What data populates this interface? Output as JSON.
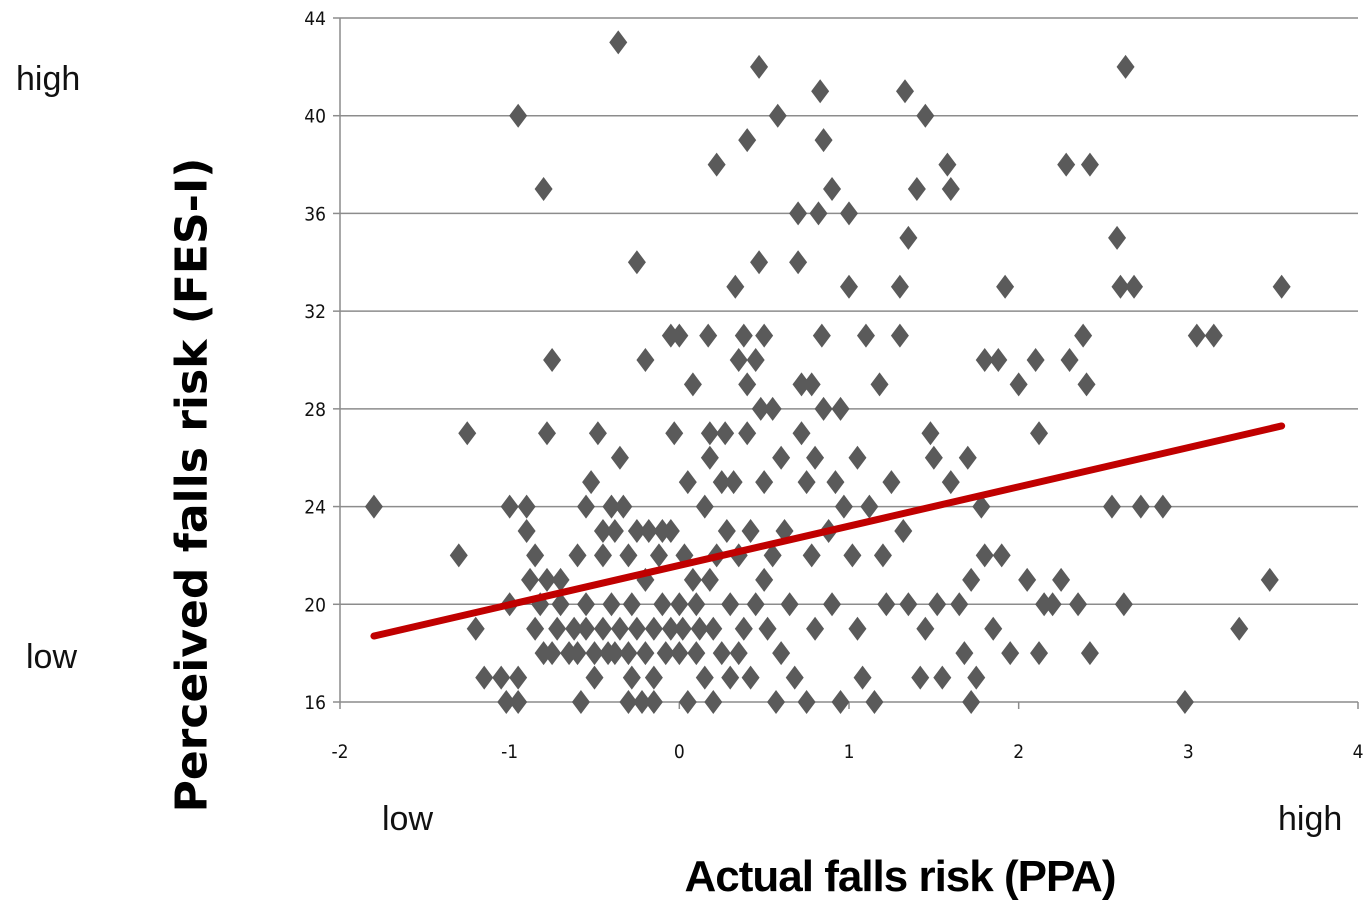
{
  "labels": {
    "y_high": "high",
    "y_low": "low",
    "x_low": "low",
    "x_high": "high"
  },
  "chart_data": {
    "type": "scatter",
    "title": "",
    "xlabel": "Actual  falls risk (PPA)",
    "ylabel": "Perceived falls risk (FES-I)",
    "xlim": [
      -2,
      4
    ],
    "ylim": [
      16,
      44
    ],
    "xticks": [
      -2,
      -1,
      0,
      1,
      2,
      3,
      4
    ],
    "yticks": [
      16,
      20,
      24,
      28,
      32,
      36,
      40,
      44
    ],
    "grid": "horizontal",
    "marker": "diamond",
    "colors": {
      "points": "#5a5a5a",
      "trend": "#c00000",
      "grid": "#8c8c8c"
    },
    "trendline": {
      "x": [
        -1.8,
        3.55
      ],
      "y": [
        18.7,
        27.3
      ]
    },
    "points": [
      [
        -1.8,
        24
      ],
      [
        -1.3,
        22
      ],
      [
        -1.25,
        27
      ],
      [
        -1.2,
        19
      ],
      [
        -1.15,
        17
      ],
      [
        -1.05,
        17
      ],
      [
        -1.02,
        16
      ],
      [
        -1.0,
        24
      ],
      [
        -1.0,
        20
      ],
      [
        -0.95,
        17
      ],
      [
        -0.95,
        16
      ],
      [
        -0.95,
        40
      ],
      [
        -0.9,
        23
      ],
      [
        -0.9,
        24
      ],
      [
        -0.88,
        21
      ],
      [
        -0.85,
        22
      ],
      [
        -0.85,
        19
      ],
      [
        -0.82,
        20
      ],
      [
        -0.8,
        37
      ],
      [
        -0.8,
        18
      ],
      [
        -0.78,
        27
      ],
      [
        -0.78,
        21
      ],
      [
        -0.75,
        18
      ],
      [
        -0.75,
        30
      ],
      [
        -0.72,
        19
      ],
      [
        -0.7,
        20
      ],
      [
        -0.7,
        21
      ],
      [
        -0.65,
        18
      ],
      [
        -0.62,
        19
      ],
      [
        -0.6,
        22
      ],
      [
        -0.6,
        18
      ],
      [
        -0.58,
        16
      ],
      [
        -0.55,
        24
      ],
      [
        -0.55,
        19
      ],
      [
        -0.55,
        20
      ],
      [
        -0.52,
        25
      ],
      [
        -0.5,
        17
      ],
      [
        -0.5,
        18
      ],
      [
        -0.48,
        27
      ],
      [
        -0.45,
        22
      ],
      [
        -0.45,
        23
      ],
      [
        -0.45,
        19
      ],
      [
        -0.42,
        18
      ],
      [
        -0.4,
        24
      ],
      [
        -0.4,
        20
      ],
      [
        -0.38,
        23
      ],
      [
        -0.38,
        18
      ],
      [
        -0.36,
        43
      ],
      [
        -0.35,
        26
      ],
      [
        -0.35,
        19
      ],
      [
        -0.33,
        24
      ],
      [
        -0.3,
        16
      ],
      [
        -0.3,
        22
      ],
      [
        -0.3,
        18
      ],
      [
        -0.28,
        17
      ],
      [
        -0.28,
        20
      ],
      [
        -0.25,
        34
      ],
      [
        -0.25,
        23
      ],
      [
        -0.25,
        19
      ],
      [
        -0.22,
        16
      ],
      [
        -0.2,
        30
      ],
      [
        -0.2,
        21
      ],
      [
        -0.2,
        18
      ],
      [
        -0.18,
        23
      ],
      [
        -0.15,
        17
      ],
      [
        -0.15,
        19
      ],
      [
        -0.15,
        16
      ],
      [
        -0.12,
        22
      ],
      [
        -0.1,
        23
      ],
      [
        -0.1,
        20
      ],
      [
        -0.08,
        18
      ],
      [
        -0.05,
        31
      ],
      [
        -0.05,
        19
      ],
      [
        -0.05,
        23
      ],
      [
        -0.03,
        27
      ],
      [
        0.0,
        31
      ],
      [
        0.0,
        20
      ],
      [
        0.0,
        18
      ],
      [
        0.02,
        19
      ],
      [
        0.03,
        22
      ],
      [
        0.05,
        25
      ],
      [
        0.05,
        16
      ],
      [
        0.08,
        29
      ],
      [
        0.08,
        21
      ],
      [
        0.1,
        20
      ],
      [
        0.1,
        18
      ],
      [
        0.12,
        19
      ],
      [
        0.15,
        24
      ],
      [
        0.15,
        17
      ],
      [
        0.17,
        31
      ],
      [
        0.18,
        27
      ],
      [
        0.18,
        26
      ],
      [
        0.18,
        21
      ],
      [
        0.2,
        16
      ],
      [
        0.2,
        19
      ],
      [
        0.22,
        38
      ],
      [
        0.22,
        22
      ],
      [
        0.25,
        25
      ],
      [
        0.25,
        18
      ],
      [
        0.27,
        27
      ],
      [
        0.28,
        23
      ],
      [
        0.3,
        20
      ],
      [
        0.3,
        17
      ],
      [
        0.32,
        25
      ],
      [
        0.33,
        33
      ],
      [
        0.35,
        30
      ],
      [
        0.35,
        22
      ],
      [
        0.35,
        18
      ],
      [
        0.38,
        31
      ],
      [
        0.38,
        19
      ],
      [
        0.4,
        39
      ],
      [
        0.4,
        29
      ],
      [
        0.4,
        27
      ],
      [
        0.42,
        23
      ],
      [
        0.42,
        17
      ],
      [
        0.45,
        30
      ],
      [
        0.45,
        20
      ],
      [
        0.47,
        34
      ],
      [
        0.47,
        42
      ],
      [
        0.48,
        28
      ],
      [
        0.5,
        31
      ],
      [
        0.5,
        25
      ],
      [
        0.5,
        21
      ],
      [
        0.52,
        19
      ],
      [
        0.55,
        28
      ],
      [
        0.55,
        22
      ],
      [
        0.57,
        16
      ],
      [
        0.58,
        40
      ],
      [
        0.6,
        26
      ],
      [
        0.6,
        18
      ],
      [
        0.62,
        23
      ],
      [
        0.65,
        20
      ],
      [
        0.68,
        17
      ],
      [
        0.7,
        36
      ],
      [
        0.7,
        34
      ],
      [
        0.72,
        29
      ],
      [
        0.72,
        27
      ],
      [
        0.75,
        25
      ],
      [
        0.75,
        16
      ],
      [
        0.78,
        29
      ],
      [
        0.78,
        22
      ],
      [
        0.8,
        19
      ],
      [
        0.8,
        26
      ],
      [
        0.82,
        36
      ],
      [
        0.83,
        41
      ],
      [
        0.84,
        31
      ],
      [
        0.85,
        39
      ],
      [
        0.85,
        28
      ],
      [
        0.88,
        23
      ],
      [
        0.9,
        37
      ],
      [
        0.9,
        20
      ],
      [
        0.92,
        25
      ],
      [
        0.95,
        16
      ],
      [
        0.95,
        28
      ],
      [
        0.97,
        24
      ],
      [
        1.0,
        36
      ],
      [
        1.0,
        33
      ],
      [
        1.02,
        22
      ],
      [
        1.05,
        26
      ],
      [
        1.05,
        19
      ],
      [
        1.08,
        17
      ],
      [
        1.1,
        31
      ],
      [
        1.12,
        24
      ],
      [
        1.15,
        16
      ],
      [
        1.18,
        29
      ],
      [
        1.2,
        22
      ],
      [
        1.22,
        20
      ],
      [
        1.25,
        25
      ],
      [
        1.3,
        33
      ],
      [
        1.3,
        31
      ],
      [
        1.32,
        23
      ],
      [
        1.33,
        41
      ],
      [
        1.35,
        20
      ],
      [
        1.35,
        35
      ],
      [
        1.4,
        37
      ],
      [
        1.42,
        17
      ],
      [
        1.45,
        40
      ],
      [
        1.45,
        19
      ],
      [
        1.48,
        27
      ],
      [
        1.5,
        26
      ],
      [
        1.52,
        20
      ],
      [
        1.55,
        17
      ],
      [
        1.58,
        38
      ],
      [
        1.6,
        37
      ],
      [
        1.6,
        25
      ],
      [
        1.65,
        20
      ],
      [
        1.68,
        18
      ],
      [
        1.7,
        26
      ],
      [
        1.72,
        16
      ],
      [
        1.72,
        21
      ],
      [
        1.75,
        17
      ],
      [
        1.78,
        24
      ],
      [
        1.8,
        30
      ],
      [
        1.8,
        22
      ],
      [
        1.85,
        19
      ],
      [
        1.88,
        30
      ],
      [
        1.9,
        22
      ],
      [
        1.92,
        33
      ],
      [
        1.95,
        18
      ],
      [
        2.0,
        29
      ],
      [
        2.05,
        21
      ],
      [
        2.1,
        30
      ],
      [
        2.12,
        27
      ],
      [
        2.12,
        18
      ],
      [
        2.15,
        20
      ],
      [
        2.2,
        20
      ],
      [
        2.25,
        21
      ],
      [
        2.28,
        38
      ],
      [
        2.3,
        30
      ],
      [
        2.35,
        20
      ],
      [
        2.38,
        31
      ],
      [
        2.4,
        29
      ],
      [
        2.42,
        18
      ],
      [
        2.42,
        38
      ],
      [
        2.55,
        24
      ],
      [
        2.58,
        35
      ],
      [
        2.6,
        33
      ],
      [
        2.62,
        20
      ],
      [
        2.63,
        42
      ],
      [
        2.68,
        33
      ],
      [
        2.72,
        24
      ],
      [
        2.85,
        24
      ],
      [
        2.98,
        16
      ],
      [
        3.05,
        31
      ],
      [
        3.15,
        31
      ],
      [
        3.3,
        19
      ],
      [
        3.48,
        21
      ],
      [
        3.55,
        33
      ]
    ]
  }
}
